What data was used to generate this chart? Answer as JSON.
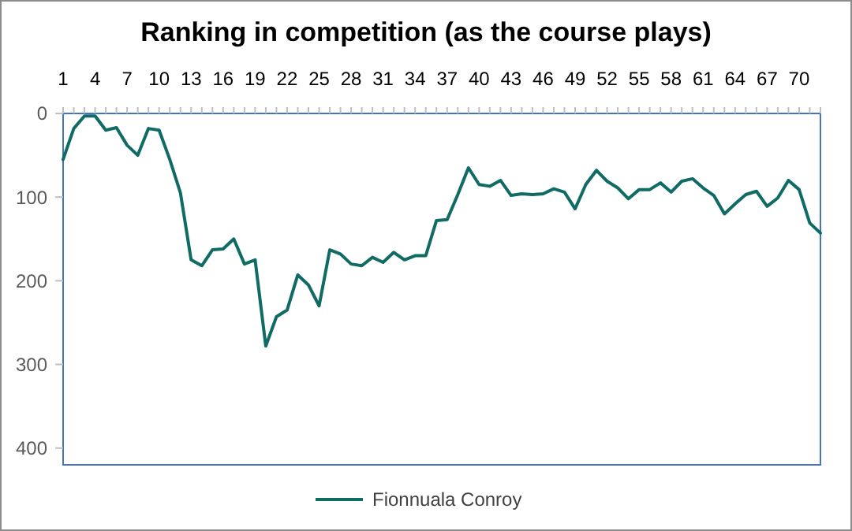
{
  "chart_data": {
    "type": "line",
    "title": "Ranking in competition (as the course plays)",
    "categories": [
      "1",
      null,
      null,
      "4",
      null,
      null,
      "7",
      null,
      null,
      "10",
      null,
      null,
      "13",
      null,
      null,
      "16",
      null,
      null,
      "19",
      null,
      null,
      "22",
      null,
      null,
      "25",
      null,
      null,
      "28",
      null,
      null,
      "31",
      null,
      null,
      "34",
      null,
      null,
      "37",
      null,
      null,
      "40",
      null,
      null,
      "43",
      null,
      null,
      "46",
      null,
      null,
      "49",
      null,
      null,
      "52",
      null,
      null,
      "55",
      null,
      null,
      "58",
      null,
      null,
      "61",
      null,
      null,
      "64",
      null,
      null,
      "67",
      null,
      null,
      "70",
      null,
      null
    ],
    "series": [
      {
        "name": "Fionnuala Conroy",
        "color": "#0f6b64",
        "values": [
          55,
          18,
          3,
          3,
          20,
          17,
          38,
          50,
          18,
          20,
          55,
          95,
          175,
          182,
          163,
          162,
          150,
          180,
          175,
          278,
          243,
          235,
          193,
          205,
          230,
          163,
          168,
          180,
          182,
          172,
          178,
          166,
          175,
          170,
          170,
          128,
          127,
          97,
          65,
          85,
          87,
          80,
          98,
          96,
          97,
          96,
          90,
          94,
          114,
          85,
          68,
          81,
          89,
          102,
          91,
          91,
          83,
          94,
          81,
          78,
          89,
          98,
          120,
          108,
          97,
          93,
          111,
          101,
          80,
          91,
          131,
          143
        ]
      }
    ],
    "ylim": [
      420,
      0
    ],
    "yticks": [
      0,
      100,
      200,
      300,
      400
    ],
    "grid": false,
    "legend": "bottom",
    "marker": "none",
    "line_style": "solid"
  }
}
